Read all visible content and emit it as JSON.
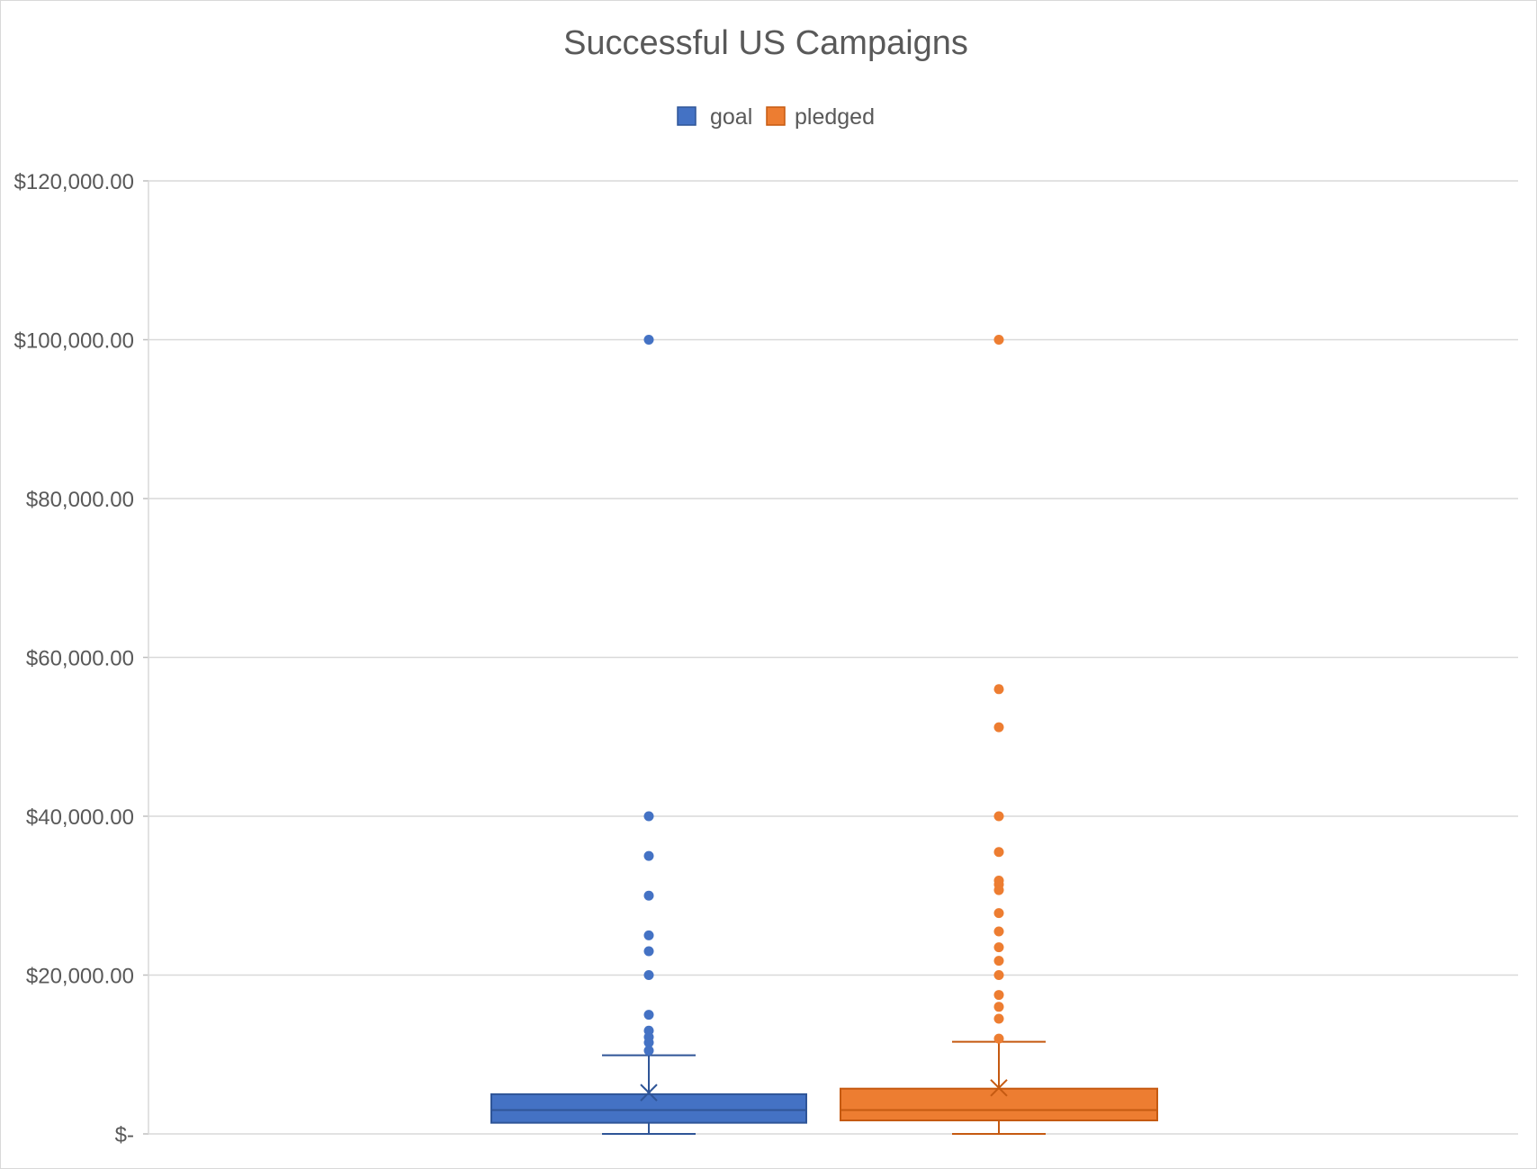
{
  "chart_data": {
    "type": "box",
    "title": "Successful US Campaigns",
    "xlabel": "",
    "ylabel": "",
    "ylim": [
      0,
      120000
    ],
    "y_ticks": [
      0,
      20000,
      40000,
      60000,
      80000,
      100000,
      120000
    ],
    "y_tick_labels": [
      "$-",
      "$20,000.00",
      "$40,000.00",
      "$60,000.00",
      "$80,000.00",
      "$100,000.00",
      "$120,000.00"
    ],
    "grid": true,
    "legend_position": "top",
    "series": [
      {
        "name": "goal",
        "color": "#4472C4",
        "min": 0,
        "q1": 1400,
        "median": 3000,
        "q3": 5000,
        "whisker_high": 9900,
        "mean": 5200,
        "outliers": [
          10500,
          11500,
          12200,
          13000,
          15000,
          20000,
          23000,
          25000,
          30000,
          35000,
          40000,
          100000
        ]
      },
      {
        "name": "pledged",
        "color": "#ED7D31",
        "min": 0,
        "q1": 1700,
        "median": 3000,
        "q3": 5700,
        "whisker_high": 11600,
        "mean": 5800,
        "outliers": [
          12000,
          14500,
          16000,
          17500,
          20000,
          21800,
          23500,
          25500,
          27800,
          30700,
          31400,
          31900,
          35500,
          40000,
          51200,
          56000,
          100000
        ]
      }
    ]
  }
}
